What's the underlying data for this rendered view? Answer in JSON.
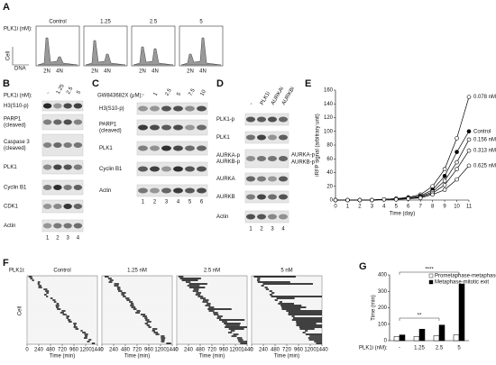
{
  "panels": {
    "a": {
      "letter": "A",
      "treatment": "PLK1i (nM):",
      "conditions": [
        "Control",
        "1.25",
        "2.5",
        "5"
      ],
      "y_label": "Cell",
      "x_label": "DNA",
      "peaks": [
        "2N",
        "4N"
      ]
    },
    "b": {
      "letter": "B",
      "treatment": "PLK1i (nM):",
      "lanes": [
        "-",
        "1.25",
        "2.5",
        "5"
      ],
      "rows": [
        [
          "H3(S10-p)"
        ],
        [
          "PARP1",
          "(cleaved)"
        ],
        [
          "Caspase 3",
          "(cleaved)"
        ],
        [
          "PLK1"
        ],
        [
          "Cyclin B1"
        ],
        [
          "CDK1"
        ],
        [
          "Actin"
        ]
      ],
      "lane_numbers": [
        "1",
        "2",
        "3",
        "4"
      ]
    },
    "c": {
      "letter": "C",
      "treatment": "GW843682X (μM):",
      "lanes": [
        "-",
        "1",
        "2.5",
        "5",
        "7.5",
        "10"
      ],
      "rows": [
        [
          "H3(S10-p)"
        ],
        [
          "PARP1",
          "(cleaved)"
        ],
        [
          "PLK1"
        ],
        [
          "Cyclin B1"
        ],
        [
          "Actin"
        ]
      ],
      "lane_numbers": [
        "1",
        "2",
        "3",
        "4",
        "5",
        "6"
      ]
    },
    "d": {
      "letter": "D",
      "lanes": [
        "-",
        "PLK1i",
        "AURKAi",
        "AURKBi"
      ],
      "rows": [
        [
          "PLK1-p"
        ],
        [
          "PLK1"
        ],
        [
          "AURKA-p",
          "AURKB-p"
        ],
        [
          "AURKA"
        ],
        [
          "AURKB"
        ],
        [
          "Actin"
        ]
      ],
      "side_labels": [
        "AURKA-p",
        "AURKB-p"
      ],
      "lane_numbers": [
        "1",
        "2",
        "3",
        "4"
      ]
    },
    "f": {
      "letter": "F",
      "treatment": "PLK1i:",
      "conditions": [
        "Control",
        "1.25 nM",
        "2.5 nM",
        "5 nM"
      ],
      "y_label": "Cell",
      "x_label": "Time (min)",
      "xlim": [
        0,
        1440
      ],
      "xticks": [
        0,
        240,
        480,
        720,
        960,
        1200,
        1440
      ]
    }
  },
  "chart_data": [
    {
      "type": "line",
      "panel": "E",
      "x_label": "Time (day)",
      "y_label": "iRFP signal (arbitrary unit)",
      "x": [
        0,
        1,
        2,
        3,
        4,
        5,
        6,
        7,
        8,
        9,
        10,
        11
      ],
      "xlim": [
        0,
        11
      ],
      "xticks": [
        0,
        1,
        2,
        3,
        4,
        5,
        6,
        7,
        8,
        9,
        10,
        11
      ],
      "ylim": [
        0,
        160
      ],
      "yticks": [
        0,
        20,
        40,
        60,
        80,
        100,
        120,
        140,
        160
      ],
      "series": [
        {
          "name": "0.078 nM",
          "color": "#000000",
          "filled": false,
          "values": [
            0,
            0,
            0,
            0,
            1,
            2,
            4,
            8,
            20,
            45,
            90,
            150
          ]
        },
        {
          "name": "Control",
          "color": "#000000",
          "filled": true,
          "values": [
            0,
            0,
            0,
            0,
            1,
            2,
            3,
            6,
            15,
            35,
            70,
            100
          ]
        },
        {
          "name": "0.156 nM",
          "color": "#000000",
          "filled": false,
          "values": [
            0,
            0,
            0,
            0,
            1,
            2,
            3,
            5,
            12,
            28,
            55,
            88
          ]
        },
        {
          "name": "0.313 nM",
          "color": "#000000",
          "filled": false,
          "values": [
            0,
            0,
            0,
            0,
            1,
            1,
            2,
            4,
            10,
            22,
            45,
            72
          ]
        },
        {
          "name": "0.625 nM",
          "color": "#000000",
          "filled": false,
          "values": [
            0,
            0,
            0,
            0,
            1,
            1,
            2,
            3,
            8,
            15,
            30,
            50
          ]
        }
      ]
    },
    {
      "type": "bar",
      "panel": "G",
      "x_label": "PLK1i (nM):",
      "y_label": "Time (min)",
      "categories": [
        "-",
        "1.25",
        "2.5",
        "5"
      ],
      "ylim": [
        0,
        400
      ],
      "yticks": [
        0,
        100,
        200,
        300,
        400
      ],
      "legend": "upper right",
      "series": [
        {
          "name": "Prometaphase-metaphase",
          "color": "#ffffff",
          "values": [
            25,
            25,
            30,
            35
          ]
        },
        {
          "name": "Metaphase-mitotic exit",
          "color": "#000000",
          "values": [
            35,
            70,
            95,
            345
          ]
        }
      ],
      "annotations": [
        "**",
        "****"
      ]
    }
  ]
}
